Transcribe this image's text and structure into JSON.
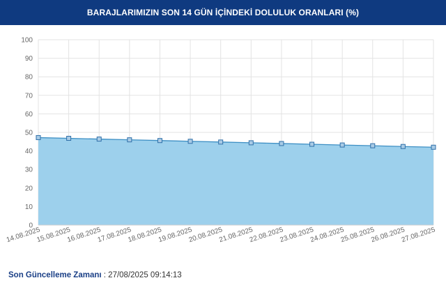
{
  "header": {
    "title": "BARAJLARIMIZIN SON 14 GÜN İÇİNDEKİ DOLULUK ORANLARI (%)"
  },
  "footer": {
    "label": "Son Güncelleme Zamanı",
    "separator": " : ",
    "value": "27/08/2025 09:14:13"
  },
  "colors": {
    "header_bg": "#0f3a80",
    "area_fill": "#9dd0ec",
    "line": "#3d8fc4",
    "point": "#a9cbe6",
    "point_border": "#2f6fa8"
  },
  "chart_data": {
    "type": "area",
    "title": "BARAJLARIMIZIN SON 14 GÜN İÇİNDEKİ DOLULUK ORANLARI (%)",
    "xlabel": "",
    "ylabel": "",
    "categories": [
      "14.08.2025",
      "15.08.2025",
      "16.08.2025",
      "17.08.2025",
      "18.08.2025",
      "19.08.2025",
      "20.08.2025",
      "21.08.2025",
      "22.08.2025",
      "23.08.2025",
      "24.08.2025",
      "25.08.2025",
      "26.08.2025",
      "27.08.2025"
    ],
    "series": [
      {
        "values": [
          47.2,
          46.8,
          46.4,
          46.0,
          45.6,
          45.2,
          44.8,
          44.4,
          44.0,
          43.6,
          43.2,
          42.8,
          42.4,
          42.0
        ]
      }
    ],
    "ylim": [
      0,
      100
    ],
    "yticks": [
      0,
      10,
      20,
      30,
      40,
      50,
      60,
      70,
      80,
      90,
      100
    ],
    "grid": true,
    "legend": "none"
  }
}
